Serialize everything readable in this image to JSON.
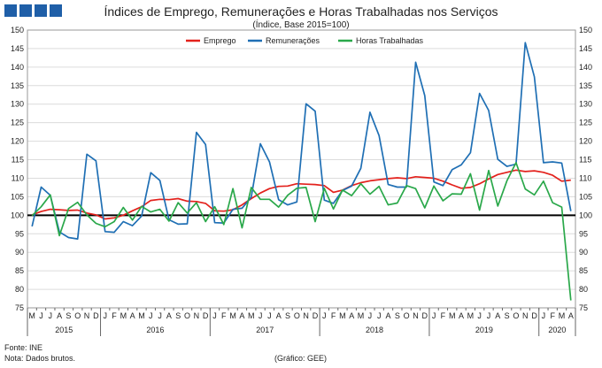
{
  "header": {
    "title": "Índices de Emprego, Remunerações e Horas Trabalhadas nos Serviços",
    "subtitle": "(Índice, Base 2015=100)"
  },
  "footer": {
    "source": "Fonte: INE",
    "note": "Nota: Dados brutos.",
    "credit": "(Gráfico: GEE)"
  },
  "colors": {
    "emprego": "#e3211c",
    "remuneracoes": "#1f6fb4",
    "horas": "#2aa84a",
    "reference": "#000000",
    "logo": "#1f5fa8"
  },
  "logo_icon": "four-blue-squares-logo",
  "chart_data": {
    "type": "line",
    "title": "Índices de Emprego, Remunerações e Horas Trabalhadas nos Serviços",
    "subtitle": "(Índice, Base 2015=100)",
    "ylim": [
      75,
      150
    ],
    "y_ticks": [
      75,
      80,
      85,
      90,
      95,
      100,
      105,
      110,
      115,
      120,
      125,
      130,
      135,
      140,
      145,
      150
    ],
    "secondary_y_axis": true,
    "reference_line": 100,
    "grid": "horizontal",
    "legend_position": "top",
    "month_labels": [
      "M",
      "J",
      "J",
      "A",
      "S",
      "O",
      "N",
      "D",
      "J",
      "F",
      "M",
      "A",
      "M",
      "J",
      "J",
      "A",
      "S",
      "O",
      "N",
      "D",
      "J",
      "F",
      "M",
      "A",
      "M",
      "J",
      "J",
      "A",
      "S",
      "O",
      "N",
      "D",
      "J",
      "F",
      "M",
      "A",
      "M",
      "J",
      "J",
      "A",
      "S",
      "O",
      "N",
      "D",
      "J",
      "F",
      "M",
      "A",
      "M",
      "J",
      "J",
      "A",
      "S",
      "O",
      "N",
      "D",
      "J",
      "F",
      "M",
      "A"
    ],
    "years": [
      {
        "label": "2015",
        "start": 0,
        "end": 7
      },
      {
        "label": "2016",
        "start": 8,
        "end": 19
      },
      {
        "label": "2017",
        "start": 20,
        "end": 31
      },
      {
        "label": "2018",
        "start": 32,
        "end": 43
      },
      {
        "label": "2019",
        "start": 44,
        "end": 55
      },
      {
        "label": "2020",
        "start": 56,
        "end": 59
      }
    ],
    "series": [
      {
        "name": "Emprego",
        "color": "#e3211c",
        "values": [
          100.1,
          101.0,
          101.6,
          101.5,
          101.3,
          101.4,
          100.6,
          100.1,
          99.0,
          99.3,
          100.0,
          101.2,
          102.3,
          104.0,
          104.3,
          104.2,
          104.5,
          103.8,
          103.7,
          103.2,
          101.2,
          101.1,
          101.5,
          102.8,
          104.5,
          106.0,
          107.2,
          107.8,
          107.9,
          108.5,
          108.4,
          108.3,
          108.0,
          106.2,
          106.8,
          108.0,
          108.8,
          109.3,
          109.6,
          109.9,
          110.1,
          109.9,
          110.4,
          110.2,
          110.0,
          109.2,
          108.2,
          107.3,
          107.5,
          108.5,
          109.8,
          111.0,
          111.6,
          112.2,
          111.8,
          112.0,
          111.6,
          110.8,
          109.2,
          109.5
        ]
      },
      {
        "name": "Remunerações",
        "color": "#1f6fb4",
        "values": [
          97.0,
          107.6,
          105.4,
          95.5,
          94.0,
          93.6,
          116.5,
          114.7,
          95.6,
          95.4,
          98.3,
          97.2,
          99.8,
          111.5,
          109.4,
          98.8,
          97.6,
          97.7,
          122.4,
          119.1,
          98.0,
          97.9,
          101.6,
          101.9,
          104.9,
          119.3,
          114.4,
          104.2,
          102.8,
          103.6,
          130.1,
          128.1,
          104.1,
          103.2,
          106.7,
          107.9,
          112.7,
          127.8,
          121.5,
          108.3,
          107.6,
          107.6,
          141.3,
          132.3,
          109.0,
          108.0,
          112.3,
          113.6,
          116.9,
          132.9,
          128.3,
          115.1,
          113.2,
          113.8,
          146.6,
          137.4,
          114.2,
          114.4,
          114.1,
          101.1
        ]
      },
      {
        "name": "Horas Trabalhadas",
        "color": "#2aa84a",
        "values": [
          99.9,
          102.3,
          105.5,
          94.5,
          101.8,
          103.5,
          100.1,
          97.8,
          96.9,
          98.3,
          102.1,
          98.7,
          102.4,
          100.9,
          101.6,
          98.4,
          103.4,
          100.6,
          103.4,
          98.3,
          102.3,
          97.5,
          107.2,
          96.6,
          107.5,
          104.3,
          104.3,
          102.2,
          105.4,
          107.3,
          107.5,
          98.3,
          107.3,
          101.7,
          106.8,
          105.3,
          108.5,
          105.7,
          107.8,
          102.8,
          103.3,
          108.0,
          107.2,
          102.0,
          107.9,
          103.9,
          105.8,
          105.7,
          111.2,
          101.4,
          112.1,
          102.5,
          109.3,
          114.2,
          107.1,
          105.5,
          109.2,
          103.4,
          102.2,
          77.0
        ]
      }
    ]
  }
}
